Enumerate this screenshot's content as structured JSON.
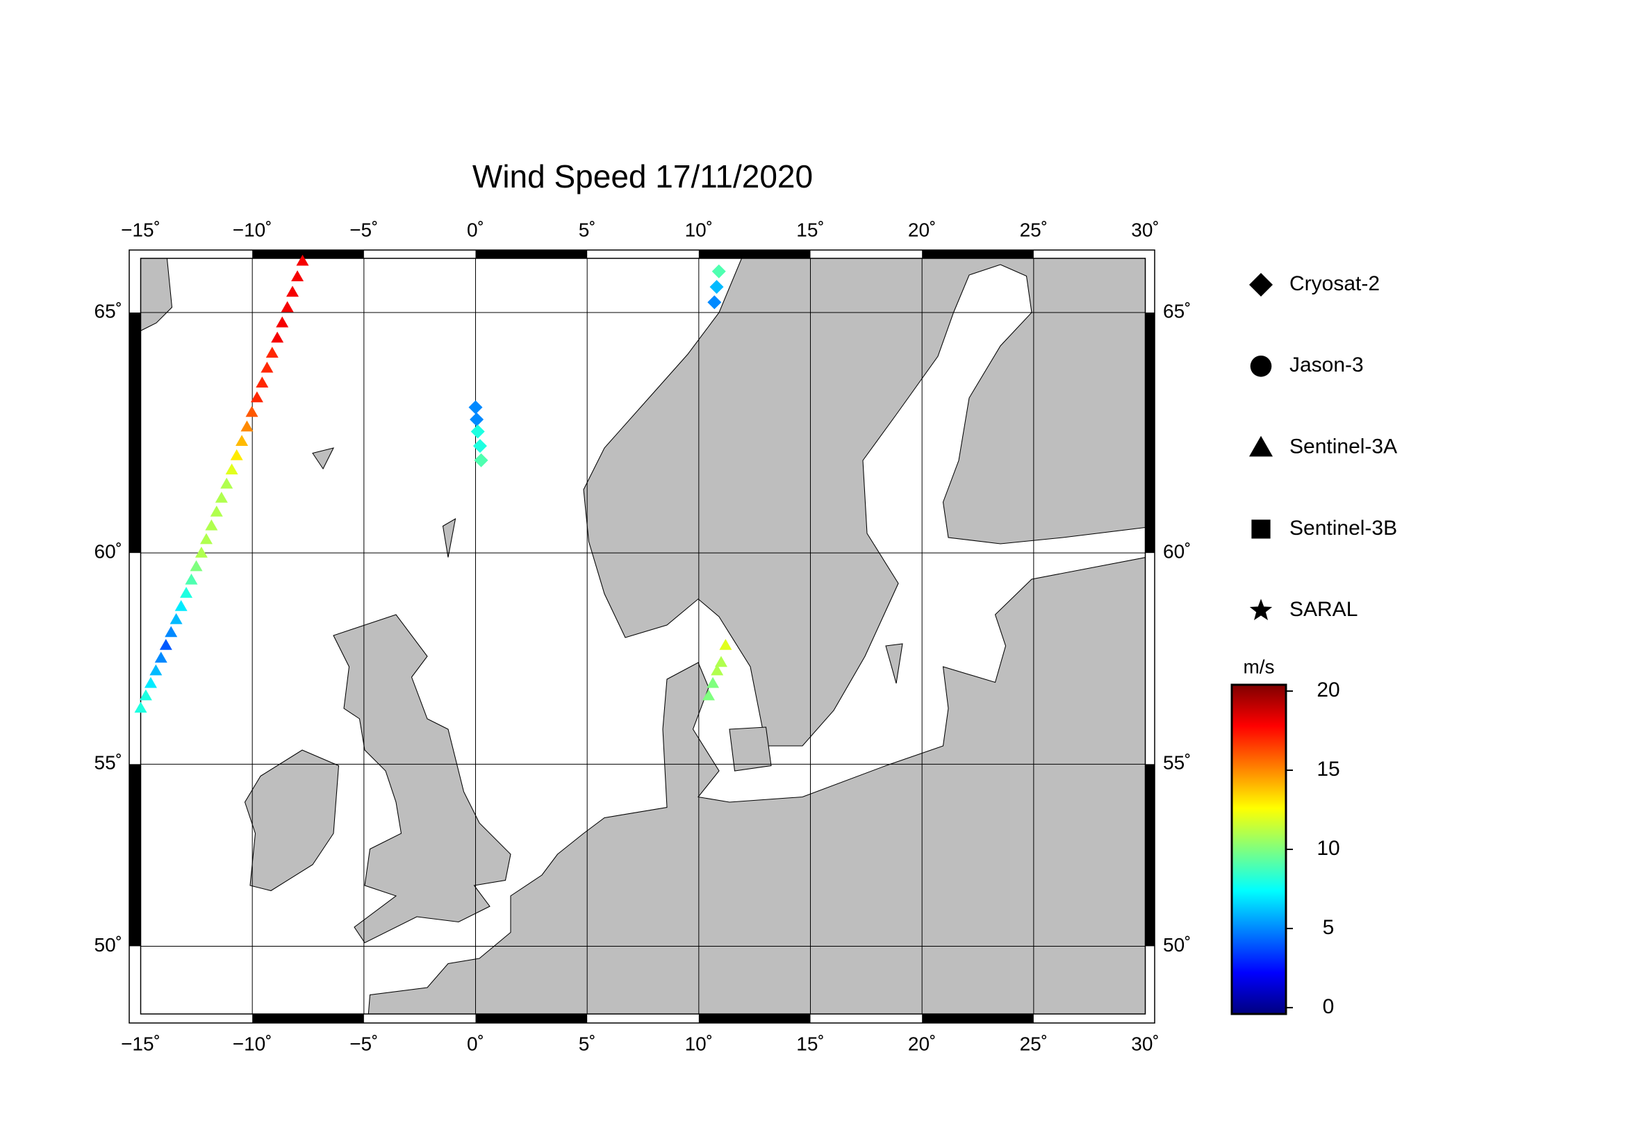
{
  "chart_data": {
    "type": "map",
    "title": "Wind Speed 17/11/2020",
    "xlim": [
      -15,
      30
    ],
    "ylim": [
      47.9,
      66.05
    ],
    "xticks": [
      {
        "value": -15,
        "label": "−15˚"
      },
      {
        "value": -10,
        "label": "−10˚"
      },
      {
        "value": -5,
        "label": "−5˚"
      },
      {
        "value": 0,
        "label": "0˚"
      },
      {
        "value": 5,
        "label": "5˚"
      },
      {
        "value": 10,
        "label": "10˚"
      },
      {
        "value": 15,
        "label": "15˚"
      },
      {
        "value": 20,
        "label": "20˚"
      },
      {
        "value": 25,
        "label": "25˚"
      },
      {
        "value": 30,
        "label": "30˚"
      }
    ],
    "yticks": [
      {
        "value": 50,
        "label": "50˚"
      },
      {
        "value": 55,
        "label": "55˚"
      },
      {
        "value": 60,
        "label": "60˚"
      },
      {
        "value": 65,
        "label": "65˚"
      }
    ],
    "grid": true,
    "colorbar": {
      "label": "m/s",
      "lim": [
        -0.4,
        20.4
      ],
      "ticks": [
        0,
        5,
        10,
        15,
        20
      ],
      "colormap": [
        "#00007f",
        "#0000ff",
        "#007fff",
        "#00ffff",
        "#7fff7f",
        "#ffff00",
        "#ff7f00",
        "#ff0000",
        "#7f0000"
      ]
    },
    "series": [
      {
        "name": "Cryosat-2",
        "marker": "diamond",
        "lon": [
          0,
          0.05,
          0.1,
          0.2,
          0.25,
          10.9,
          10.8,
          10.7
        ],
        "lat": [
          63.1,
          62.85,
          62.6,
          62.3,
          62.0,
          65.8,
          65.5,
          65.2
        ],
        "values": [
          5,
          5,
          8,
          8,
          9,
          9,
          6,
          5
        ]
      },
      {
        "name": "Jason-3",
        "marker": "circle",
        "lon": [],
        "lat": [],
        "values": []
      },
      {
        "name": "Sentinel-3A",
        "marker": "triangle",
        "lon": [
          -15.0,
          -14.77,
          -14.55,
          -14.32,
          -14.09,
          -13.87,
          -13.64,
          -13.41,
          -13.19,
          -12.96,
          -12.73,
          -12.51,
          -12.28,
          -12.06,
          -11.83,
          -11.6,
          -11.38,
          -11.15,
          -10.92,
          -10.7,
          -10.47,
          -10.24,
          -10.02,
          -9.79,
          -9.56,
          -9.34,
          -9.11,
          -8.88,
          -8.66,
          -8.43,
          -8.2,
          -7.98,
          -7.75,
          10.44,
          10.63,
          10.82,
          11.0,
          11.2
        ],
        "lat": [
          56.4,
          56.7,
          57.0,
          57.3,
          57.6,
          57.9,
          58.2,
          58.5,
          58.8,
          59.1,
          59.4,
          59.7,
          60.0,
          60.3,
          60.6,
          60.9,
          61.2,
          61.5,
          61.8,
          62.1,
          62.4,
          62.7,
          63.0,
          63.3,
          63.6,
          63.9,
          64.2,
          64.5,
          64.8,
          65.1,
          65.4,
          65.7,
          66.0,
          56.7,
          57.0,
          57.3,
          57.5,
          57.9
        ],
        "values": [
          8,
          8,
          7,
          6,
          5,
          4,
          5,
          6,
          7,
          8,
          9,
          10,
          11,
          11,
          11,
          11,
          11,
          11,
          12,
          13,
          14,
          15,
          16,
          17,
          17,
          17,
          17,
          18,
          18,
          18,
          18,
          18,
          18,
          10,
          10,
          11,
          11,
          12
        ]
      },
      {
        "name": "Sentinel-3B",
        "marker": "square",
        "lon": [],
        "lat": [],
        "values": []
      },
      {
        "name": "SARAL",
        "marker": "star",
        "lon": [],
        "lat": [],
        "values": []
      }
    ]
  }
}
